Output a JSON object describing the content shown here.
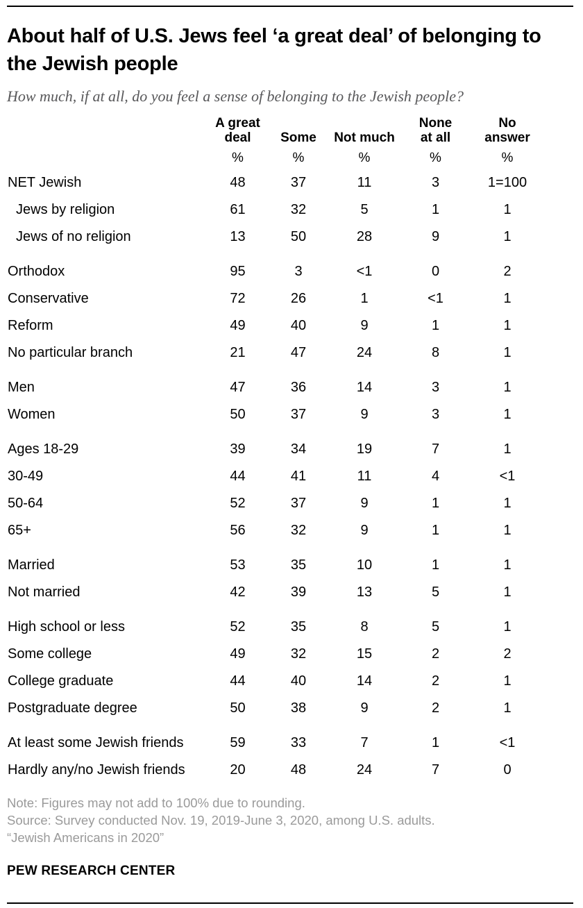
{
  "colors": {
    "rule": "#000000",
    "title_text": "#000000",
    "subtitle_text": "#58585a",
    "note_text": "#9a9a9a",
    "table_text": "#000000"
  },
  "header": {
    "title": "About half of U.S. Jews feel ‘a great deal’ of belonging to the Jewish people",
    "subtitle": "How much, if at all, do you feel a sense of belonging to the Jewish people?"
  },
  "chart_data": {
    "type": "table",
    "title": "About half of U.S. Jews feel ‘a great deal’ of belonging to the Jewish people",
    "subtitle": "How much, if at all, do you feel a sense of belonging to the Jewish people?",
    "columns": [
      "A great deal",
      "Some",
      "Not much",
      "None at all",
      "No answer"
    ],
    "columns_display": [
      "A great\ndeal",
      "Some",
      "Not much",
      "None\nat all",
      "No\nanswer"
    ],
    "unit": "%",
    "unit_row": [
      "%",
      "%",
      "%",
      "%",
      "%"
    ],
    "groups": [
      {
        "rows": [
          {
            "label": "NET Jewish",
            "indent": false,
            "values": [
              "48",
              "37",
              "11",
              "3",
              "1=100"
            ]
          },
          {
            "label": "Jews by religion",
            "indent": true,
            "values": [
              "61",
              "32",
              "5",
              "1",
              "1"
            ]
          },
          {
            "label": "Jews of no religion",
            "indent": true,
            "values": [
              "13",
              "50",
              "28",
              "9",
              "1"
            ]
          }
        ]
      },
      {
        "rows": [
          {
            "label": "Orthodox",
            "indent": false,
            "values": [
              "95",
              "3",
              "<1",
              "0",
              "2"
            ]
          },
          {
            "label": "Conservative",
            "indent": false,
            "values": [
              "72",
              "26",
              "1",
              "<1",
              "1"
            ]
          },
          {
            "label": "Reform",
            "indent": false,
            "values": [
              "49",
              "40",
              "9",
              "1",
              "1"
            ]
          },
          {
            "label": "No particular branch",
            "indent": false,
            "values": [
              "21",
              "47",
              "24",
              "8",
              "1"
            ]
          }
        ]
      },
      {
        "rows": [
          {
            "label": "Men",
            "indent": false,
            "values": [
              "47",
              "36",
              "14",
              "3",
              "1"
            ]
          },
          {
            "label": "Women",
            "indent": false,
            "values": [
              "50",
              "37",
              "9",
              "3",
              "1"
            ]
          }
        ]
      },
      {
        "rows": [
          {
            "label": "Ages 18-29",
            "indent": false,
            "values": [
              "39",
              "34",
              "19",
              "7",
              "1"
            ]
          },
          {
            "label": "30-49",
            "indent": false,
            "values": [
              "44",
              "41",
              "11",
              "4",
              "<1"
            ]
          },
          {
            "label": "50-64",
            "indent": false,
            "values": [
              "52",
              "37",
              "9",
              "1",
              "1"
            ]
          },
          {
            "label": "65+",
            "indent": false,
            "values": [
              "56",
              "32",
              "9",
              "1",
              "1"
            ]
          }
        ]
      },
      {
        "rows": [
          {
            "label": "Married",
            "indent": false,
            "values": [
              "53",
              "35",
              "10",
              "1",
              "1"
            ]
          },
          {
            "label": "Not married",
            "indent": false,
            "values": [
              "42",
              "39",
              "13",
              "5",
              "1"
            ]
          }
        ]
      },
      {
        "rows": [
          {
            "label": "High school or less",
            "indent": false,
            "values": [
              "52",
              "35",
              "8",
              "5",
              "1"
            ]
          },
          {
            "label": "Some college",
            "indent": false,
            "values": [
              "49",
              "32",
              "15",
              "2",
              "2"
            ]
          },
          {
            "label": "College graduate",
            "indent": false,
            "values": [
              "44",
              "40",
              "14",
              "2",
              "1"
            ]
          },
          {
            "label": "Postgraduate degree",
            "indent": false,
            "values": [
              "50",
              "38",
              "9",
              "2",
              "1"
            ]
          }
        ]
      },
      {
        "rows": [
          {
            "label": "At least some Jewish friends",
            "indent": false,
            "values": [
              "59",
              "33",
              "7",
              "1",
              "<1"
            ]
          },
          {
            "label": "Hardly any/no Jewish friends",
            "indent": false,
            "values": [
              "20",
              "48",
              "24",
              "7",
              "0"
            ]
          }
        ]
      }
    ]
  },
  "notes": [
    "Note: Figures may not add to 100% due to rounding.",
    "Source: Survey conducted Nov. 19, 2019-June 3, 2020, among U.S. adults.",
    "“Jewish Americans in 2020”"
  ],
  "footer": {
    "brand": "PEW RESEARCH CENTER"
  }
}
